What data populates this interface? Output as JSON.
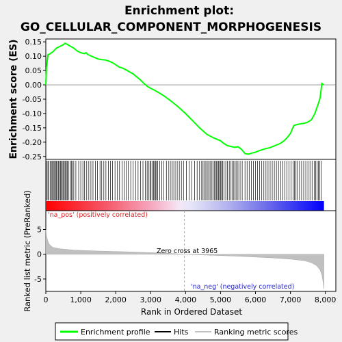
{
  "title_line1": "Enrichment plot:",
  "title_line2": "GO_CELLULAR_COMPONENT_MORPHOGENESIS",
  "top_ylabel": "Enrichment score (ES)",
  "bottom_ylabel": "Ranked list metric (PreRanked)",
  "xlabel": "Rank in Ordered Dataset",
  "pos_label": "'na_pos' (positively correlated)",
  "neg_label": "'na_neg' (negatively correlated)",
  "zero_cross_label": "Zero cross at 3965",
  "legend": {
    "enrichment_profile": "Enrichment profile",
    "hits": "Hits",
    "ranking_metric": "Ranking metric scores"
  },
  "colors": {
    "es_line": "#00ff00",
    "hits": "#000000",
    "ranking": "#c0c0c0",
    "pos_label": "#dd2222",
    "neg_label": "#2222cc"
  },
  "chart_data": {
    "type": "line",
    "total_genes": 7960,
    "zero_cross": 3965,
    "x_ticks": [
      0,
      1000,
      2000,
      3000,
      4000,
      5000,
      6000,
      7000,
      8000
    ],
    "x_tick_labels": [
      "0",
      "1,000",
      "2,000",
      "3,000",
      "4,000",
      "5,000",
      "6,000",
      "7,000",
      "8,000"
    ],
    "xlim": [
      0,
      8300
    ],
    "es": {
      "ylim": [
        -0.26,
        0.16
      ],
      "y_ticks": [
        0.15,
        0.1,
        0.05,
        0.0,
        -0.05,
        -0.1,
        -0.15,
        -0.2,
        -0.25
      ],
      "y_tick_labels": [
        "0.15",
        "0.10",
        "0.05",
        "0.00",
        "-0.05",
        "-0.10",
        "-0.15",
        "-0.20",
        "-0.25"
      ],
      "x": [
        0,
        20,
        60,
        100,
        200,
        300,
        400,
        500,
        550,
        600,
        700,
        800,
        900,
        1000,
        1100,
        1150,
        1200,
        1300,
        1400,
        1500,
        1600,
        1700,
        1800,
        1900,
        2000,
        2100,
        2200,
        2300,
        2400,
        2500,
        2600,
        2700,
        2800,
        2900,
        3000,
        3100,
        3200,
        3400,
        3600,
        3800,
        4000,
        4200,
        4400,
        4600,
        4800,
        5000,
        5100,
        5200,
        5300,
        5400,
        5500,
        5600,
        5700,
        5800,
        5900,
        6000,
        6100,
        6200,
        6300,
        6400,
        6500,
        6600,
        6700,
        6800,
        6900,
        7000,
        7050,
        7100,
        7200,
        7300,
        7400,
        7500,
        7600,
        7700,
        7750,
        7800,
        7850,
        7900,
        7950
      ],
      "y": [
        0.0,
        0.06,
        0.105,
        0.107,
        0.115,
        0.128,
        0.134,
        0.14,
        0.145,
        0.142,
        0.135,
        0.128,
        0.118,
        0.112,
        0.109,
        0.112,
        0.106,
        0.1,
        0.095,
        0.09,
        0.088,
        0.087,
        0.083,
        0.078,
        0.07,
        0.062,
        0.058,
        0.052,
        0.045,
        0.038,
        0.028,
        0.018,
        0.006,
        -0.005,
        -0.012,
        -0.018,
        -0.025,
        -0.04,
        -0.058,
        -0.078,
        -0.1,
        -0.125,
        -0.15,
        -0.172,
        -0.185,
        -0.195,
        -0.205,
        -0.212,
        -0.215,
        -0.218,
        -0.216,
        -0.225,
        -0.24,
        -0.242,
        -0.238,
        -0.235,
        -0.23,
        -0.226,
        -0.222,
        -0.22,
        -0.215,
        -0.21,
        -0.205,
        -0.197,
        -0.185,
        -0.17,
        -0.155,
        -0.142,
        -0.138,
        -0.136,
        -0.134,
        -0.13,
        -0.122,
        -0.1,
        -0.082,
        -0.065,
        -0.045,
        0.005,
        0.0
      ]
    },
    "hits": [
      30,
      60,
      90,
      130,
      160,
      190,
      220,
      250,
      280,
      300,
      330,
      360,
      390,
      420,
      450,
      470,
      500,
      530,
      560,
      590,
      620,
      650,
      700,
      730,
      760,
      800,
      860,
      940,
      1000,
      1060,
      1110,
      1170,
      1230,
      1290,
      1350,
      1420,
      1480,
      1550,
      1600,
      1660,
      1720,
      1790,
      1850,
      1910,
      1980,
      2050,
      2110,
      2180,
      2240,
      2300,
      2360,
      2430,
      2500,
      2570,
      2640,
      2710,
      2780,
      2850,
      2900,
      2940,
      2980,
      3010,
      3050,
      3080,
      3110,
      3140,
      3170,
      3200,
      3260,
      3320,
      3380,
      3450,
      3520,
      3580,
      3640,
      3700,
      3760,
      3820,
      3880,
      3940,
      4020,
      4100,
      4180,
      4260,
      4330,
      4400,
      4460,
      4500,
      4540,
      4580,
      4620,
      4660,
      4700,
      4740,
      4780,
      4820,
      4850,
      4880,
      4910,
      4940,
      4970,
      5000,
      5030,
      5060,
      5100,
      5150,
      5200,
      5250,
      5300,
      5340,
      5380,
      5420,
      5460,
      5500,
      5560,
      5620,
      5700,
      5760,
      5820,
      5880,
      5940,
      6000,
      6060,
      6120,
      6180,
      6240,
      6300,
      6360,
      6420,
      6480,
      6540,
      6600,
      6660,
      6720,
      6780,
      6840,
      6900,
      6960,
      7020,
      7080,
      7120,
      7160,
      7200,
      7260,
      7320,
      7380,
      7440,
      7500,
      7560,
      7620,
      7680,
      7720,
      7760,
      7800,
      7840,
      7880
    ],
    "ranking": {
      "ylim": [
        -7.5,
        8.8
      ],
      "y_ticks": [
        5,
        0,
        -5
      ],
      "y_tick_labels": [
        "5",
        "0",
        "-5"
      ],
      "x": [
        0,
        20,
        50,
        100,
        200,
        400,
        800,
        1500,
        2500,
        3500,
        3965,
        4500,
        5500,
        6500,
        7000,
        7400,
        7600,
        7750,
        7850,
        7900,
        7940,
        7960
      ],
      "y": [
        5.0,
        3.8,
        2.8,
        2.0,
        1.4,
        1.1,
        0.85,
        0.65,
        0.45,
        0.2,
        0.0,
        -0.15,
        -0.4,
        -0.75,
        -1.0,
        -1.3,
        -1.7,
        -2.3,
        -3.2,
        -4.2,
        -5.8,
        -7.0
      ]
    }
  }
}
